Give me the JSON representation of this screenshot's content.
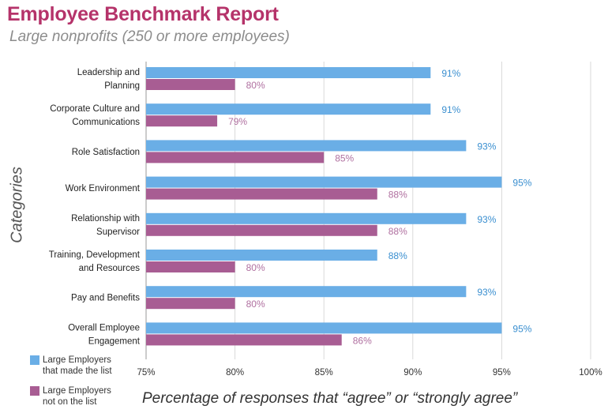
{
  "chart_data": {
    "type": "bar",
    "title": "Employee Benchmark Report",
    "subtitle": "Large nonprofits (250 or more employees)",
    "xlabel": "Percentage of responses that “agree” or “strongly agree”",
    "ylabel": "Categories",
    "xlim": [
      75,
      100
    ],
    "xticks": [
      75,
      80,
      85,
      90,
      95,
      100
    ],
    "tick_suffix": "%",
    "categories": [
      [
        "Leadership and",
        "Planning"
      ],
      [
        "Corporate Culture and",
        "Communications"
      ],
      [
        "Role Satisfaction"
      ],
      [
        "Work Environment"
      ],
      [
        "Relationship with",
        "Supervisor"
      ],
      [
        "Training, Development",
        "and Resources"
      ],
      [
        "Pay and Benefits"
      ],
      [
        "Overall Employee",
        "Engagement"
      ]
    ],
    "series": [
      {
        "name": "Large Employers that made the list",
        "legend_lines": [
          "Large Employers",
          "that made the list"
        ],
        "color": "#6aaee6",
        "label_color": "#3a8fd0",
        "values": [
          91,
          91,
          93,
          95,
          93,
          88,
          93,
          95
        ]
      },
      {
        "name": "Large Employers not on the list",
        "legend_lines": [
          "Large Employers",
          "not on the list"
        ],
        "color": "#a85d93",
        "label_color": "#b070a0",
        "values": [
          80,
          79,
          85,
          88,
          88,
          80,
          80,
          86
        ]
      }
    ]
  }
}
